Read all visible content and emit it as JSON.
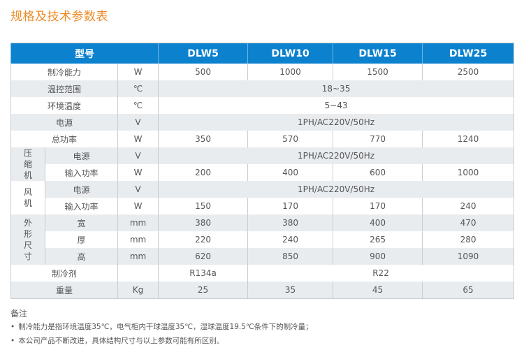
{
  "title": "规格及技术参数表",
  "table": {
    "header": {
      "model_label": "型号",
      "models": [
        "DLW5",
        "DLW10",
        "DLW15",
        "DLW25"
      ]
    },
    "rows": {
      "cooling": {
        "label": "制冷能力",
        "unit": "W",
        "values": [
          "500",
          "1000",
          "1500",
          "2500"
        ]
      },
      "temp_range": {
        "label": "温控范围",
        "unit": "℃",
        "value": "18~35"
      },
      "ambient": {
        "label": "环境温度",
        "unit": "℃",
        "value": "5~43"
      },
      "power_supply": {
        "label": "电源",
        "unit": "V",
        "value": "1PH/AC220V/50Hz"
      },
      "total_power": {
        "label": "总功率",
        "unit": "W",
        "values": [
          "350",
          "570",
          "770",
          "1240"
        ]
      },
      "compressor": {
        "group": "压缩机",
        "supply_label": "电源",
        "supply_unit": "V",
        "supply_value": "1PH/AC220V/50Hz",
        "input_label": "输入功率",
        "input_unit": "W",
        "input_values": [
          "200",
          "400",
          "600",
          "1000"
        ]
      },
      "fan": {
        "group": "风机",
        "supply_label": "电源",
        "supply_unit": "V",
        "supply_value": "1PH/AC220V/50Hz",
        "input_label": "输入功率",
        "input_unit": "W",
        "input_values": [
          "150",
          "170",
          "170",
          "240"
        ]
      },
      "dimensions": {
        "group": "外形尺寸",
        "width": {
          "label": "宽",
          "unit": "mm",
          "values": [
            "380",
            "380",
            "400",
            "470"
          ]
        },
        "depth": {
          "label": "厚",
          "unit": "mm",
          "values": [
            "220",
            "240",
            "265",
            "280"
          ]
        },
        "height": {
          "label": "高",
          "unit": "mm",
          "values": [
            "620",
            "850",
            "900",
            "1090"
          ]
        }
      },
      "refrigerant": {
        "label": "制冷剂",
        "unit": "",
        "values": [
          "R134a",
          "R22"
        ]
      },
      "weight": {
        "label": "重量",
        "unit": "Kg",
        "values": [
          "25",
          "35",
          "45",
          "65"
        ]
      }
    }
  },
  "notes": {
    "heading": "备注",
    "items": [
      "制冷能力是指环境温度35℃，电气柜内干球温度35℃，湿球温度19.5℃条件下的制冷量；",
      "本公司产品不断改进，具体结构尺寸与以上参数可能有所区别。"
    ]
  },
  "colors": {
    "title": "#ec8a25",
    "header_bg": "#0c82cf",
    "stripe": "#e9ecef"
  }
}
